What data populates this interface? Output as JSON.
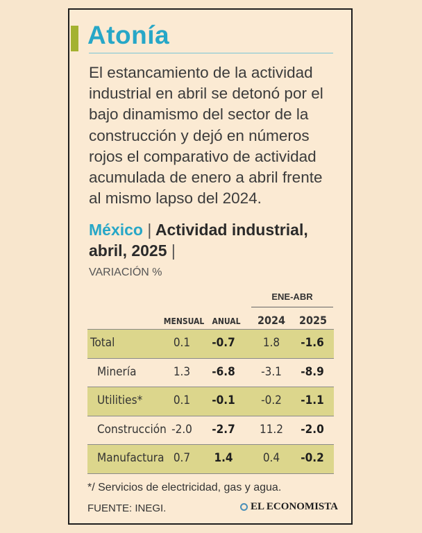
{
  "title": "Atonía",
  "intro": "El estancamiento de la actividad industrial en abril se detonó por el bajo dinamismo del sector de la construcción y dejó en números rojos el comparativo de actividad acumulada de enero a abril frente al mismo lapso del 2024.",
  "subhead": {
    "place": "México",
    "separator": "|",
    "title": "Actividad industrial, abril, 2025",
    "trailing": "|"
  },
  "unit": "VARIACIÓN %",
  "table": {
    "group_label": "ENE-ABR",
    "columns": [
      "MENSUAL",
      "ANUAL",
      "2024",
      "2025"
    ],
    "rows": [
      {
        "label": "Total",
        "mensual": "0.1",
        "anual": "-0.7",
        "y2024": "1.8",
        "y2025": "-1.6"
      },
      {
        "label": "Minería",
        "mensual": "1.3",
        "anual": "-6.8",
        "y2024": "-3.1",
        "y2025": "-8.9"
      },
      {
        "label": "Utilities*",
        "mensual": "0.1",
        "anual": "-0.1",
        "y2024": "-0.2",
        "y2025": "-1.1"
      },
      {
        "label": "Construcción",
        "mensual": "-2.0",
        "anual": "-2.7",
        "y2024": "11.2",
        "y2025": "-2.0"
      },
      {
        "label": "Manufactura",
        "mensual": "0.7",
        "anual": "1.4",
        "y2024": "0.4",
        "y2025": "-0.2"
      }
    ]
  },
  "footnote": "*/ Servicios de electricidad, gas y agua.",
  "source": "FUENTE: INEGI.",
  "brand": "EL ECONOMISTA",
  "colors": {
    "background": "#f8e6cd",
    "accent_title": "#27a7c7",
    "accent_bar": "#a4b230",
    "row_shade": "#dcd68c"
  }
}
